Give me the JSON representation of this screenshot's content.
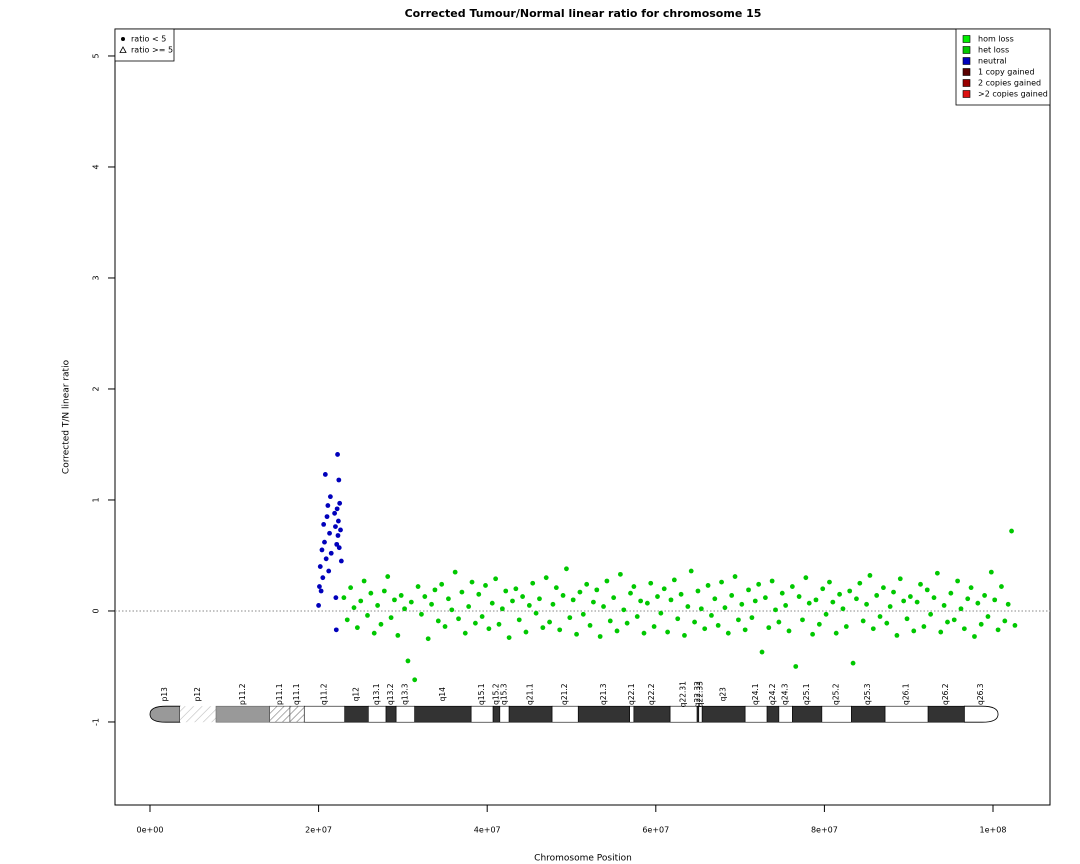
{
  "chart_data": {
    "type": "scatter",
    "title": "Corrected Tumour/Normal linear ratio for chromosome  15",
    "x_label": "Chromosome Position",
    "y_label": "Corrected T/N linear ratio",
    "xlim": [
      -4150000.0,
      106760000.0
    ],
    "ylim": [
      -1.748,
      5.243
    ],
    "xticks": [
      {
        "value": 0,
        "label": "0e+00"
      },
      {
        "value": 20000000.0,
        "label": "2e+07"
      },
      {
        "value": 40000000.0,
        "label": "4e+07"
      },
      {
        "value": 60000000.0,
        "label": "6e+07"
      },
      {
        "value": 80000000.0,
        "label": "8e+07"
      },
      {
        "value": 100000000.0,
        "label": "1e+08"
      }
    ],
    "yticks": [
      -1,
      0,
      1,
      2,
      3,
      4,
      5
    ],
    "reference_line": 0,
    "legend": "top-right",
    "shape_legend": {
      "position": "top-left",
      "entries": [
        {
          "label": "ratio < 5",
          "shape": "circle"
        },
        {
          "label": "ratio >= 5",
          "shape": "triangle"
        }
      ]
    },
    "series": [
      {
        "name": "hom loss",
        "color": "#00ee00",
        "x": [],
        "values": []
      },
      {
        "name": "het loss",
        "color": "#00c800",
        "x": [
          23000000.0,
          23400000.0,
          23800000.0,
          24200000.0,
          24600000.0,
          25000000.0,
          25400000.0,
          25800000.0,
          26200000.0,
          26600000.0,
          27000000.0,
          27400000.0,
          27800000.0,
          28200000.0,
          28600000.0,
          29000000.0,
          29400000.0,
          29800000.0,
          30200000.0,
          30600000.0,
          31000000.0,
          31400000.0,
          31800000.0,
          32200000.0,
          32600000.0,
          33000000.0,
          33400000.0,
          33800000.0,
          34200000.0,
          34600000.0,
          35000000.0,
          35400000.0,
          35800000.0,
          36200000.0,
          36600000.0,
          37000000.0,
          37400000.0,
          37800000.0,
          38200000.0,
          38600000.0,
          39000000.0,
          39400000.0,
          39800000.0,
          40200000.0,
          40600000.0,
          41000000.0,
          41400000.0,
          41800000.0,
          42200000.0,
          42600000.0,
          43000000.0,
          43400000.0,
          43800000.0,
          44200000.0,
          44600000.0,
          45000000.0,
          45400000.0,
          45800000.0,
          46200000.0,
          46600000.0,
          47000000.0,
          47400000.0,
          47800000.0,
          48200000.0,
          48600000.0,
          49000000.0,
          49400000.0,
          49800000.0,
          50200000.0,
          50600000.0,
          51000000.0,
          51400000.0,
          51800000.0,
          52200000.0,
          52600000.0,
          53000000.0,
          53400000.0,
          53800000.0,
          54200000.0,
          54600000.0,
          55000000.0,
          55400000.0,
          55800000.0,
          56200000.0,
          56600000.0,
          57000000.0,
          57400000.0,
          57800000.0,
          58200000.0,
          58600000.0,
          59000000.0,
          59400000.0,
          59800000.0,
          60200000.0,
          60600000.0,
          61000000.0,
          61400000.0,
          61800000.0,
          62200000.0,
          62600000.0,
          63000000.0,
          63400000.0,
          63800000.0,
          64200000.0,
          64600000.0,
          65000000.0,
          65400000.0,
          65800000.0,
          66200000.0,
          66600000.0,
          67000000.0,
          67400000.0,
          67800000.0,
          68200000.0,
          68600000.0,
          69000000.0,
          69400000.0,
          69800000.0,
          70200000.0,
          70600000.0,
          71000000.0,
          71400000.0,
          71800000.0,
          72200000.0,
          72600000.0,
          73000000.0,
          73400000.0,
          73800000.0,
          74200000.0,
          74600000.0,
          75000000.0,
          75400000.0,
          75800000.0,
          76200000.0,
          76600000.0,
          77000000.0,
          77400000.0,
          77800000.0,
          78200000.0,
          78600000.0,
          79000000.0,
          79400000.0,
          79800000.0,
          80200000.0,
          80600000.0,
          81000000.0,
          81400000.0,
          81800000.0,
          82200000.0,
          82600000.0,
          83000000.0,
          83400000.0,
          83800000.0,
          84200000.0,
          84600000.0,
          85000000.0,
          85400000.0,
          85800000.0,
          86200000.0,
          86600000.0,
          87000000.0,
          87400000.0,
          87800000.0,
          88200000.0,
          88600000.0,
          89000000.0,
          89400000.0,
          89800000.0,
          90200000.0,
          90600000.0,
          91000000.0,
          91400000.0,
          91800000.0,
          92200000.0,
          92600000.0,
          93000000.0,
          93400000.0,
          93800000.0,
          94200000.0,
          94600000.0,
          95000000.0,
          95400000.0,
          95800000.0,
          96200000.0,
          96600000.0,
          97000000.0,
          97400000.0,
          97800000.0,
          98200000.0,
          98600000.0,
          99000000.0,
          99400000.0,
          99800000.0,
          100200000.0,
          100600000.0,
          101000000.0,
          101400000.0,
          101800000.0,
          102200000.0,
          102600000.0
        ],
        "values": [
          0.12,
          -0.08,
          0.21,
          0.03,
          -0.15,
          0.09,
          0.27,
          -0.04,
          0.16,
          -0.2,
          0.05,
          -0.12,
          0.18,
          0.31,
          -0.06,
          0.1,
          -0.22,
          0.14,
          0.02,
          -0.45,
          0.08,
          -0.62,
          0.22,
          -0.03,
          0.13,
          -0.25,
          0.06,
          0.19,
          -0.09,
          0.24,
          -0.14,
          0.11,
          0.01,
          0.35,
          -0.07,
          0.17,
          -0.2,
          0.04,
          0.26,
          -0.11,
          0.15,
          -0.05,
          0.23,
          -0.16,
          0.07,
          0.29,
          -0.12,
          0.02,
          0.18,
          -0.24,
          0.09,
          0.2,
          -0.08,
          0.13,
          -0.19,
          0.05,
          0.25,
          -0.02,
          0.11,
          -0.15,
          0.3,
          -0.1,
          0.06,
          0.21,
          -0.17,
          0.14,
          0.38,
          -0.06,
          0.1,
          -0.21,
          0.17,
          -0.03,
          0.24,
          -0.13,
          0.08,
          0.19,
          -0.23,
          0.04,
          0.27,
          -0.09,
          0.12,
          -0.18,
          0.33,
          0.01,
          -0.11,
          0.16,
          0.22,
          -0.05,
          0.09,
          -0.2,
          0.07,
          0.25,
          -0.14,
          0.13,
          -0.02,
          0.2,
          -0.19,
          0.1,
          0.28,
          -0.07,
          0.15,
          -0.22,
          0.04,
          0.36,
          -0.1,
          0.18,
          0.02,
          -0.16,
          0.23,
          -0.04,
          0.11,
          -0.13,
          0.26,
          0.03,
          -0.2,
          0.14,
          0.31,
          -0.08,
          0.06,
          -0.17,
          0.19,
          -0.06,
          0.09,
          0.24,
          -0.37,
          0.12,
          -0.15,
          0.27,
          0.01,
          -0.1,
          0.16,
          0.05,
          -0.18,
          0.22,
          -0.5,
          0.13,
          -0.08,
          0.3,
          0.07,
          -0.21,
          0.1,
          -0.12,
          0.2,
          -0.03,
          0.26,
          0.08,
          -0.2,
          0.15,
          0.02,
          -0.14,
          0.18,
          -0.47,
          0.11,
          0.25,
          -0.09,
          0.06,
          0.32,
          -0.16,
          0.14,
          -0.05,
          0.21,
          -0.11,
          0.04,
          0.17,
          -0.22,
          0.29,
          0.09,
          -0.07,
          0.13,
          -0.18,
          0.08,
          0.24,
          -0.14,
          0.19,
          -0.03,
          0.12,
          0.34,
          -0.19,
          0.05,
          -0.1,
          0.16,
          -0.08,
          0.27,
          0.02,
          -0.16,
          0.11,
          0.21,
          -0.23,
          0.07,
          -0.12,
          0.14,
          -0.05,
          0.35,
          0.1,
          -0.17,
          0.22,
          -0.09,
          0.06,
          0.72,
          -0.13
        ]
      },
      {
        "name": "neutral",
        "color": "#0000bb",
        "x": [
          20000000.0,
          20100000.0,
          20200000.0,
          20300000.0,
          20400000.0,
          20500000.0,
          20600000.0,
          20700000.0,
          20800000.0,
          20900000.0,
          21000000.0,
          21100000.0,
          21200000.0,
          21300000.0,
          21400000.0,
          21500000.0,
          21900000.0,
          22000000.0,
          22050000.0,
          22100000.0,
          22150000.0,
          22200000.0,
          22250000.0,
          22300000.0,
          22350000.0,
          22400000.0,
          22450000.0,
          22500000.0,
          22600000.0,
          22700000.0
        ],
        "values": [
          0.05,
          0.22,
          0.4,
          0.18,
          0.55,
          0.3,
          0.78,
          0.62,
          1.23,
          0.47,
          0.85,
          0.95,
          0.36,
          0.7,
          1.03,
          0.52,
          0.88,
          0.76,
          0.12,
          -0.17,
          0.6,
          0.92,
          1.41,
          0.68,
          0.81,
          1.18,
          0.57,
          0.97,
          0.73,
          0.45
        ]
      },
      {
        "name": "1 copy gained",
        "color": "#5a0000",
        "x": [],
        "values": []
      },
      {
        "name": "2 copies gained",
        "color": "#990000",
        "x": [],
        "values": []
      },
      {
        "name": ">2 copies gained",
        "color": "#dd1111",
        "x": [],
        "values": []
      }
    ],
    "ideogram": {
      "y": -0.93,
      "bands": [
        {
          "name": "p13",
          "start": 0,
          "end": 3560000.0,
          "stain": "gvar"
        },
        {
          "name": "p12",
          "start": 3560000.0,
          "end": 7830000.0,
          "stain": "stalk"
        },
        {
          "name": "p11.2",
          "start": 7830000.0,
          "end": 14200000.0,
          "stain": "gvar"
        },
        {
          "name": "p11.1",
          "start": 14200000.0,
          "end": 16600000.0,
          "stain": "acen"
        },
        {
          "name": "q11.1",
          "start": 16600000.0,
          "end": 18300000.0,
          "stain": "acen"
        },
        {
          "name": "q11.2",
          "start": 18300000.0,
          "end": 23100000.0,
          "stain": "gneg"
        },
        {
          "name": "q12",
          "start": 23100000.0,
          "end": 25900000.0,
          "stain": "gpos"
        },
        {
          "name": "q13.1",
          "start": 25900000.0,
          "end": 28000000.0,
          "stain": "gneg"
        },
        {
          "name": "q13.2",
          "start": 28000000.0,
          "end": 29200000.0,
          "stain": "gpos"
        },
        {
          "name": "q13.3",
          "start": 29200000.0,
          "end": 31400000.0,
          "stain": "gneg"
        },
        {
          "name": "q14",
          "start": 31400000.0,
          "end": 38100000.0,
          "stain": "gpos"
        },
        {
          "name": "q15.1",
          "start": 38100000.0,
          "end": 40700000.0,
          "stain": "gneg"
        },
        {
          "name": "q15.2",
          "start": 40700000.0,
          "end": 41500000.0,
          "stain": "gpos"
        },
        {
          "name": "q15.3",
          "start": 41500000.0,
          "end": 42600000.0,
          "stain": "gneg"
        },
        {
          "name": "q21.1",
          "start": 42600000.0,
          "end": 47700000.0,
          "stain": "gpos"
        },
        {
          "name": "q21.2",
          "start": 47700000.0,
          "end": 50800000.0,
          "stain": "gneg"
        },
        {
          "name": "q21.3",
          "start": 50800000.0,
          "end": 56900000.0,
          "stain": "gpos"
        },
        {
          "name": "q22.1",
          "start": 56900000.0,
          "end": 57400000.0,
          "stain": "gneg"
        },
        {
          "name": "q22.2",
          "start": 57400000.0,
          "end": 61700000.0,
          "stain": "gpos"
        },
        {
          "name": "q22.31",
          "start": 61700000.0,
          "end": 64900000.0,
          "stain": "gneg"
        },
        {
          "name": "q22.32",
          "start": 64900000.0,
          "end": 65100000.0,
          "stain": "gpos"
        },
        {
          "name": "q22.33",
          "start": 65100000.0,
          "end": 65500000.0,
          "stain": "gneg"
        },
        {
          "name": "q23",
          "start": 65500000.0,
          "end": 70600000.0,
          "stain": "gpos"
        },
        {
          "name": "q24.1",
          "start": 70600000.0,
          "end": 73200000.0,
          "stain": "gneg"
        },
        {
          "name": "q24.2",
          "start": 73200000.0,
          "end": 74600000.0,
          "stain": "gpos"
        },
        {
          "name": "q24.3",
          "start": 74600000.0,
          "end": 76200000.0,
          "stain": "gneg"
        },
        {
          "name": "q25.1",
          "start": 76200000.0,
          "end": 79700000.0,
          "stain": "gpos"
        },
        {
          "name": "q25.2",
          "start": 79700000.0,
          "end": 83200000.0,
          "stain": "gneg"
        },
        {
          "name": "q25.3",
          "start": 83200000.0,
          "end": 87200000.0,
          "stain": "gpos"
        },
        {
          "name": "q26.1",
          "start": 87200000.0,
          "end": 92300000.0,
          "stain": "gneg"
        },
        {
          "name": "q26.2",
          "start": 92300000.0,
          "end": 96600000.0,
          "stain": "gpos"
        },
        {
          "name": "q26.3",
          "start": 96600000.0,
          "end": 100600000.0,
          "stain": "gneg"
        }
      ]
    }
  }
}
